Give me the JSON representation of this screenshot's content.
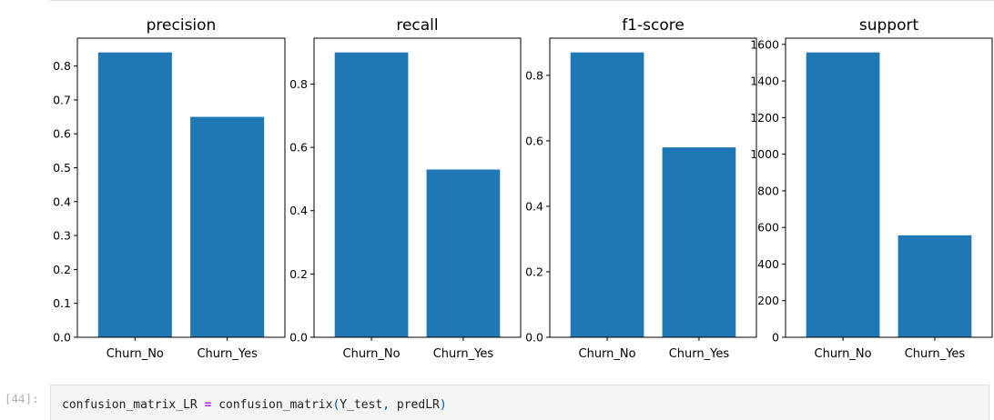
{
  "cell": {
    "prompt": "[44]:",
    "code": {
      "lhs": "confusion_matrix_LR",
      "op": "=",
      "func": "confusion_matrix",
      "open": "(",
      "arg1": "Y_test",
      "comma": ",",
      "arg2": "predLR",
      "close": ")"
    },
    "colors": {
      "operator": "#aa22ff",
      "punctuation": "#0055aa"
    }
  },
  "chart_data": [
    {
      "type": "bar",
      "title": "precision",
      "categories": [
        "Churn_No",
        "Churn_Yes"
      ],
      "values": [
        0.84,
        0.65
      ],
      "ylim": [
        0,
        0.882
      ],
      "yticks": [
        0.0,
        0.1,
        0.2,
        0.3,
        0.4,
        0.5,
        0.6,
        0.7,
        0.8
      ],
      "ytick_labels": [
        "0.0",
        "0.1",
        "0.2",
        "0.3",
        "0.4",
        "0.5",
        "0.6",
        "0.7",
        "0.8"
      ],
      "color": "#1f77b4"
    },
    {
      "type": "bar",
      "title": "recall",
      "categories": [
        "Churn_No",
        "Churn_Yes"
      ],
      "values": [
        0.9,
        0.53
      ],
      "ylim": [
        0,
        0.945
      ],
      "yticks": [
        0.0,
        0.2,
        0.4,
        0.6,
        0.8
      ],
      "ytick_labels": [
        "0.0",
        "0.2",
        "0.4",
        "0.6",
        "0.8"
      ],
      "color": "#1f77b4"
    },
    {
      "type": "bar",
      "title": "f1-score",
      "categories": [
        "Churn_No",
        "Churn_Yes"
      ],
      "values": [
        0.87,
        0.58
      ],
      "ylim": [
        0,
        0.9135
      ],
      "yticks": [
        0.0,
        0.2,
        0.4,
        0.6,
        0.8
      ],
      "ytick_labels": [
        "0.0",
        "0.2",
        "0.4",
        "0.6",
        "0.8"
      ],
      "color": "#1f77b4"
    },
    {
      "type": "bar",
      "title": "support",
      "categories": [
        "Churn_No",
        "Churn_Yes"
      ],
      "values": [
        1556,
        557
      ],
      "ylim": [
        0,
        1633.8
      ],
      "yticks": [
        0,
        200,
        400,
        600,
        800,
        1000,
        1200,
        1400,
        1600
      ],
      "ytick_labels": [
        "0",
        "200",
        "400",
        "600",
        "800",
        "1000",
        "1200",
        "1400",
        "1600"
      ],
      "color": "#1f77b4"
    }
  ]
}
